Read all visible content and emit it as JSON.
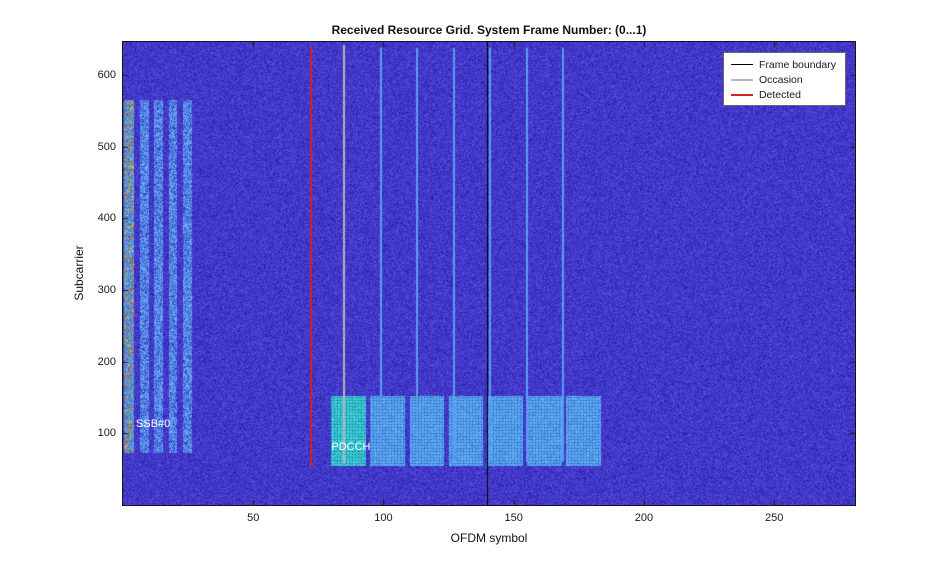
{
  "chart_data": {
    "type": "heatmap",
    "title": "Received Resource Grid. System Frame Number: (0...1)",
    "xlabel": "OFDM symbol",
    "ylabel": "Subcarrier",
    "xlim": [
      0,
      281
    ],
    "ylim": [
      0,
      646
    ],
    "x_ticks": [
      50,
      100,
      150,
      200,
      250
    ],
    "y_ticks": [
      100,
      200,
      300,
      400,
      500,
      600
    ],
    "grid": false,
    "background": {
      "description": "noisy received-signal magnitude",
      "base_color": "#3a30c8"
    },
    "ssb": {
      "label": "SSB#0",
      "label_pos": {
        "x": 5,
        "y": 105
      },
      "detected_stripe_x": [
        0.5,
        4
      ],
      "stripes_x": [
        [
          6.5,
          9.5
        ],
        [
          12,
          15
        ],
        [
          17.5,
          20.5
        ],
        [
          23,
          26
        ]
      ],
      "y": [
        74,
        565
      ]
    },
    "pdcch": {
      "label": "PDCCH",
      "label_pos": {
        "x": 80,
        "y": 72
      },
      "blocks_x": [
        [
          80,
          93
        ],
        [
          95,
          108
        ],
        [
          110,
          123
        ],
        [
          125,
          138
        ],
        [
          140,
          153
        ],
        [
          155,
          168
        ],
        [
          170,
          183
        ]
      ],
      "y": [
        56,
        152
      ],
      "first_block_color": "#2fbfca",
      "block_color": "#4e8fe0"
    },
    "occasion_lines": {
      "x": [
        99,
        113,
        127,
        141,
        155,
        169
      ],
      "y": [
        60,
        638
      ],
      "color": "#5c9cf0"
    },
    "vlines": [
      {
        "name": "Frame boundary",
        "x": 140,
        "y": [
          0,
          646
        ],
        "color": "#000000",
        "width": 1
      },
      {
        "name": "Occasion",
        "x": 85,
        "y": [
          58,
          642
        ],
        "color": "#b4b4b4",
        "width": 2
      },
      {
        "name": "Detected",
        "x": 72,
        "y": [
          54,
          640
        ],
        "color": "#c8281e",
        "width": 2
      }
    ],
    "legend": {
      "position": "top-right",
      "entries": [
        {
          "label": "Frame boundary",
          "color": "#000000",
          "line_width": 1.5
        },
        {
          "label": "Occasion",
          "color": "#b4b4b4",
          "line_width": 2
        },
        {
          "label": "Detected",
          "color": "#c8281e",
          "line_width": 2
        }
      ]
    }
  }
}
